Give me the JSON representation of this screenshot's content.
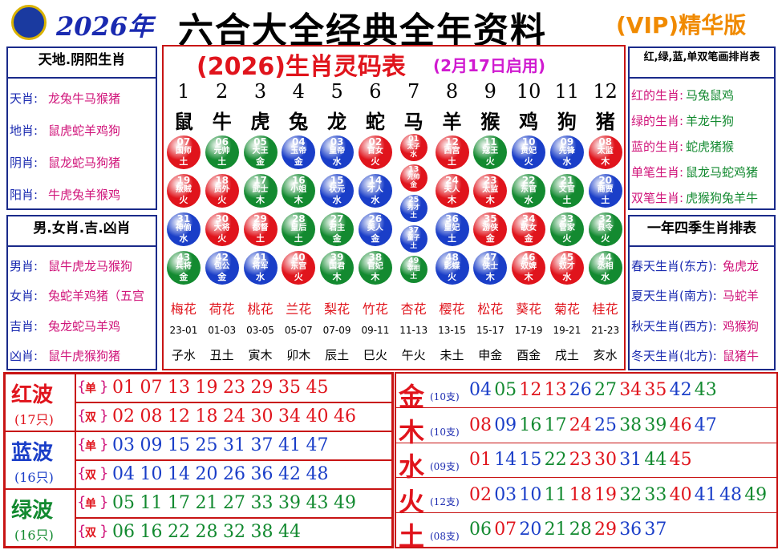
{
  "header": {
    "year": "2026年",
    "title": "六合大全经典全年资料",
    "badge": "(VIP)精华版"
  },
  "table": {
    "title": "(2026)生肖灵码表",
    "subtitle": "(2月17日启用)",
    "numbers": [
      "1",
      "2",
      "3",
      "4",
      "5",
      "6",
      "7",
      "8",
      "9",
      "10",
      "11",
      "12"
    ],
    "zodiac": [
      "鼠",
      "牛",
      "虎",
      "兔",
      "龙",
      "蛇",
      "马",
      "羊",
      "猴",
      "鸡",
      "狗",
      "猪"
    ],
    "balls": [
      [
        {
          "n": "07",
          "name": "国师",
          "el": "土",
          "c": "red"
        },
        {
          "n": "19",
          "name": "叛贼",
          "el": "火",
          "c": "red"
        },
        {
          "n": "31",
          "name": "神偷",
          "el": "水",
          "c": "blue"
        },
        {
          "n": "43",
          "name": "兵将",
          "el": "金",
          "c": "green"
        }
      ],
      [
        {
          "n": "06",
          "name": "元帅",
          "el": "土",
          "c": "green"
        },
        {
          "n": "18",
          "name": "员外",
          "el": "火",
          "c": "red"
        },
        {
          "n": "30",
          "name": "大将",
          "el": "火",
          "c": "red"
        },
        {
          "n": "42",
          "name": "包公",
          "el": "金",
          "c": "blue"
        }
      ],
      [
        {
          "n": "05",
          "name": "大王",
          "el": "金",
          "c": "green"
        },
        {
          "n": "17",
          "name": "武士",
          "el": "木",
          "c": "green"
        },
        {
          "n": "29",
          "name": "都督",
          "el": "土",
          "c": "red"
        },
        {
          "n": "41",
          "name": "将军",
          "el": "水",
          "c": "blue"
        }
      ],
      [
        {
          "n": "04",
          "name": "玉帝",
          "el": "金",
          "c": "blue"
        },
        {
          "n": "16",
          "name": "小姐",
          "el": "木",
          "c": "green"
        },
        {
          "n": "28",
          "name": "皇后",
          "el": "土",
          "c": "green"
        },
        {
          "n": "40",
          "name": "东宫",
          "el": "火",
          "c": "red"
        }
      ],
      [
        {
          "n": "03",
          "name": "皇帝",
          "el": "水",
          "c": "blue"
        },
        {
          "n": "15",
          "name": "状元",
          "el": "水",
          "c": "blue"
        },
        {
          "n": "27",
          "name": "君主",
          "el": "金",
          "c": "green"
        },
        {
          "n": "39",
          "name": "国君",
          "el": "木",
          "c": "green"
        }
      ],
      [
        {
          "n": "02",
          "name": "官女",
          "el": "火",
          "c": "red"
        },
        {
          "n": "14",
          "name": "才人",
          "el": "水",
          "c": "blue"
        },
        {
          "n": "26",
          "name": "美人",
          "el": "金",
          "c": "blue"
        },
        {
          "n": "38",
          "name": "官妃",
          "el": "木",
          "c": "green"
        }
      ],
      [
        {
          "n": "01",
          "name": "太子",
          "el": "水",
          "c": "red"
        },
        {
          "n": "13",
          "name": "元帅",
          "el": "金",
          "c": "red"
        },
        {
          "n": "25",
          "name": "秀才",
          "el": "土",
          "c": "blue"
        },
        {
          "n": "37",
          "name": "童子",
          "el": "土",
          "c": "blue"
        },
        {
          "n": "49",
          "name": "宰相",
          "el": "土",
          "c": "green"
        }
      ],
      [
        {
          "n": "12",
          "name": "西宫",
          "el": "土",
          "c": "red"
        },
        {
          "n": "24",
          "name": "夫人",
          "el": "木",
          "c": "red"
        },
        {
          "n": "36",
          "name": "皇妃",
          "el": "土",
          "c": "blue"
        },
        {
          "n": "48",
          "name": "影蝶",
          "el": "火",
          "c": "blue"
        }
      ],
      [
        {
          "n": "11",
          "name": "寇王",
          "el": "火",
          "c": "green"
        },
        {
          "n": "23",
          "name": "太监",
          "el": "木",
          "c": "red"
        },
        {
          "n": "35",
          "name": "游侠",
          "el": "金",
          "c": "red"
        },
        {
          "n": "47",
          "name": "侠士",
          "el": "木",
          "c": "blue"
        }
      ],
      [
        {
          "n": "10",
          "name": "贵妃",
          "el": "火",
          "c": "blue"
        },
        {
          "n": "22",
          "name": "东官",
          "el": "水",
          "c": "green"
        },
        {
          "n": "34",
          "name": "歌女",
          "el": "金",
          "c": "red"
        },
        {
          "n": "46",
          "name": "奴婢",
          "el": "木",
          "c": "red"
        }
      ],
      [
        {
          "n": "09",
          "name": "先锋",
          "el": "水",
          "c": "blue"
        },
        {
          "n": "21",
          "name": "文官",
          "el": "土",
          "c": "green"
        },
        {
          "n": "33",
          "name": "管家",
          "el": "火",
          "c": "green"
        },
        {
          "n": "45",
          "name": "奴才",
          "el": "水",
          "c": "red"
        }
      ],
      [
        {
          "n": "08",
          "name": "太监",
          "el": "木",
          "c": "red"
        },
        {
          "n": "20",
          "name": "商贾",
          "el": "土",
          "c": "blue"
        },
        {
          "n": "32",
          "name": "县令",
          "el": "火",
          "c": "green"
        },
        {
          "n": "44",
          "name": "丞相",
          "el": "水",
          "c": "green"
        }
      ]
    ],
    "flowers": [
      "梅花",
      "荷花",
      "桃花",
      "兰花",
      "梨花",
      "竹花",
      "杏花",
      "樱花",
      "松花",
      "葵花",
      "菊花",
      "桂花"
    ],
    "hours": [
      "23-01",
      "01-03",
      "03-05",
      "05-07",
      "07-09",
      "09-11",
      "11-13",
      "13-15",
      "15-17",
      "17-19",
      "19-21",
      "21-23"
    ],
    "branches": [
      "子水",
      "丑土",
      "寅木",
      "卯木",
      "辰土",
      "巳火",
      "午火",
      "未土",
      "申金",
      "酉金",
      "戌土",
      "亥水"
    ]
  },
  "left_panels": [
    {
      "title": "天地.阴阳生肖",
      "rows": [
        [
          "天肖:",
          "龙兔牛马猴猪"
        ],
        [
          "地肖:",
          "鼠虎蛇羊鸡狗"
        ],
        [
          "阴肖:",
          "鼠龙蛇马狗猪"
        ],
        [
          "阳肖:",
          "牛虎兔羊猴鸡"
        ]
      ]
    },
    {
      "title": "男.女肖.吉.凶肖",
      "rows": [
        [
          "男肖:",
          "鼠牛虎龙马猴狗"
        ],
        [
          "女肖:",
          "兔蛇羊鸡猪（五宫"
        ],
        [
          "吉肖:",
          "兔龙蛇马羊鸡"
        ],
        [
          "凶肖:",
          "鼠牛虎猴狗猪"
        ]
      ]
    }
  ],
  "right_panels": [
    {
      "title": "红,绿,蓝,单双笔画排肖表",
      "rows": [
        [
          "红的生肖:",
          "马兔鼠鸡"
        ],
        [
          "绿的生肖:",
          "羊龙牛狗"
        ],
        [
          "蓝的生肖:",
          "蛇虎猪猴"
        ],
        [
          "单笔生肖:",
          "鼠龙马蛇鸡猪"
        ],
        [
          "双笔生肖:",
          "虎猴狗兔羊牛"
        ]
      ]
    },
    {
      "title": "一年四季生肖排表",
      "rows": [
        [
          "春天生肖(东方):",
          "兔虎龙"
        ],
        [
          "夏天生肖(南方):",
          "马蛇羊"
        ],
        [
          "秋天生肖(西方):",
          "鸡猴狗"
        ],
        [
          "冬天生肖(北方):",
          "鼠猪牛"
        ]
      ]
    }
  ],
  "waves": [
    {
      "name": "红波",
      "count": "(17只)",
      "color": "red",
      "rows": [
        {
          "kind": "单",
          "numbers": [
            "01",
            "07",
            "13",
            "19",
            "23",
            "29",
            "35",
            "45"
          ]
        },
        {
          "kind": "双",
          "numbers": [
            "02",
            "08",
            "12",
            "18",
            "24",
            "30",
            "34",
            "40",
            "46"
          ]
        }
      ]
    },
    {
      "name": "蓝波",
      "count": "(16只)",
      "color": "blue",
      "rows": [
        {
          "kind": "单",
          "numbers": [
            "03",
            "09",
            "15",
            "25",
            "31",
            "37",
            "41",
            "47"
          ]
        },
        {
          "kind": "双",
          "numbers": [
            "04",
            "10",
            "14",
            "20",
            "26",
            "36",
            "42",
            "48"
          ]
        }
      ]
    },
    {
      "name": "绿波",
      "count": "(16只)",
      "color": "green",
      "rows": [
        {
          "kind": "单",
          "numbers": [
            "05",
            "11",
            "17",
            "21",
            "27",
            "33",
            "39",
            "43",
            "49"
          ]
        },
        {
          "kind": "双",
          "numbers": [
            "06",
            "16",
            "22",
            "28",
            "32",
            "38",
            "44"
          ]
        }
      ]
    }
  ],
  "elements": [
    {
      "name": "金",
      "count": "(10支)",
      "numbers": [
        "04",
        "05",
        "12",
        "13",
        "26",
        "27",
        "34",
        "35",
        "42",
        "43"
      ]
    },
    {
      "name": "木",
      "count": "(10支)",
      "numbers": [
        "08",
        "09",
        "16",
        "17",
        "24",
        "25",
        "38",
        "39",
        "46",
        "47"
      ]
    },
    {
      "name": "水",
      "count": "(09支)",
      "numbers": [
        "01",
        "14",
        "15",
        "22",
        "23",
        "30",
        "31",
        "44",
        "45"
      ]
    },
    {
      "name": "火",
      "count": "(12支)",
      "numbers": [
        "02",
        "03",
        "10",
        "11",
        "18",
        "19",
        "32",
        "33",
        "40",
        "41",
        "48",
        "49"
      ]
    },
    {
      "name": "土",
      "count": "(08支)",
      "numbers": [
        "06",
        "07",
        "20",
        "21",
        "28",
        "29",
        "36",
        "37"
      ]
    }
  ]
}
